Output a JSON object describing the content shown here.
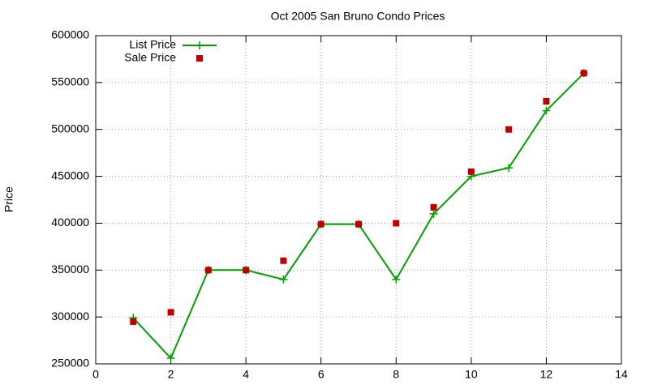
{
  "chart_data": {
    "type": "line",
    "title": "Oct 2005 San Bruno Condo Prices",
    "y_label": "Price",
    "x": [
      1,
      2,
      3,
      4,
      5,
      6,
      7,
      8,
      9,
      10,
      11,
      12,
      13
    ],
    "series": [
      {
        "name": "List Price",
        "color": "#00a000",
        "marker": "plus",
        "line": true,
        "values": [
          299000,
          256000,
          350000,
          350000,
          340000,
          399000,
          399000,
          340000,
          410000,
          450000,
          459000,
          520000,
          560000
        ]
      },
      {
        "name": "Sale Price",
        "color": "#c00000",
        "marker": "square",
        "line": false,
        "values": [
          295000,
          305000,
          350000,
          350000,
          360000,
          399000,
          399000,
          400000,
          417000,
          455000,
          500000,
          530000,
          560000
        ]
      }
    ],
    "xlim": [
      0,
      14
    ],
    "xticks": [
      0,
      2,
      4,
      6,
      8,
      10,
      12,
      14
    ],
    "ylim": [
      250000,
      600000
    ],
    "yticks": [
      250000,
      300000,
      350000,
      400000,
      450000,
      500000,
      550000,
      600000
    ],
    "grid": true,
    "legend": "top-left"
  }
}
